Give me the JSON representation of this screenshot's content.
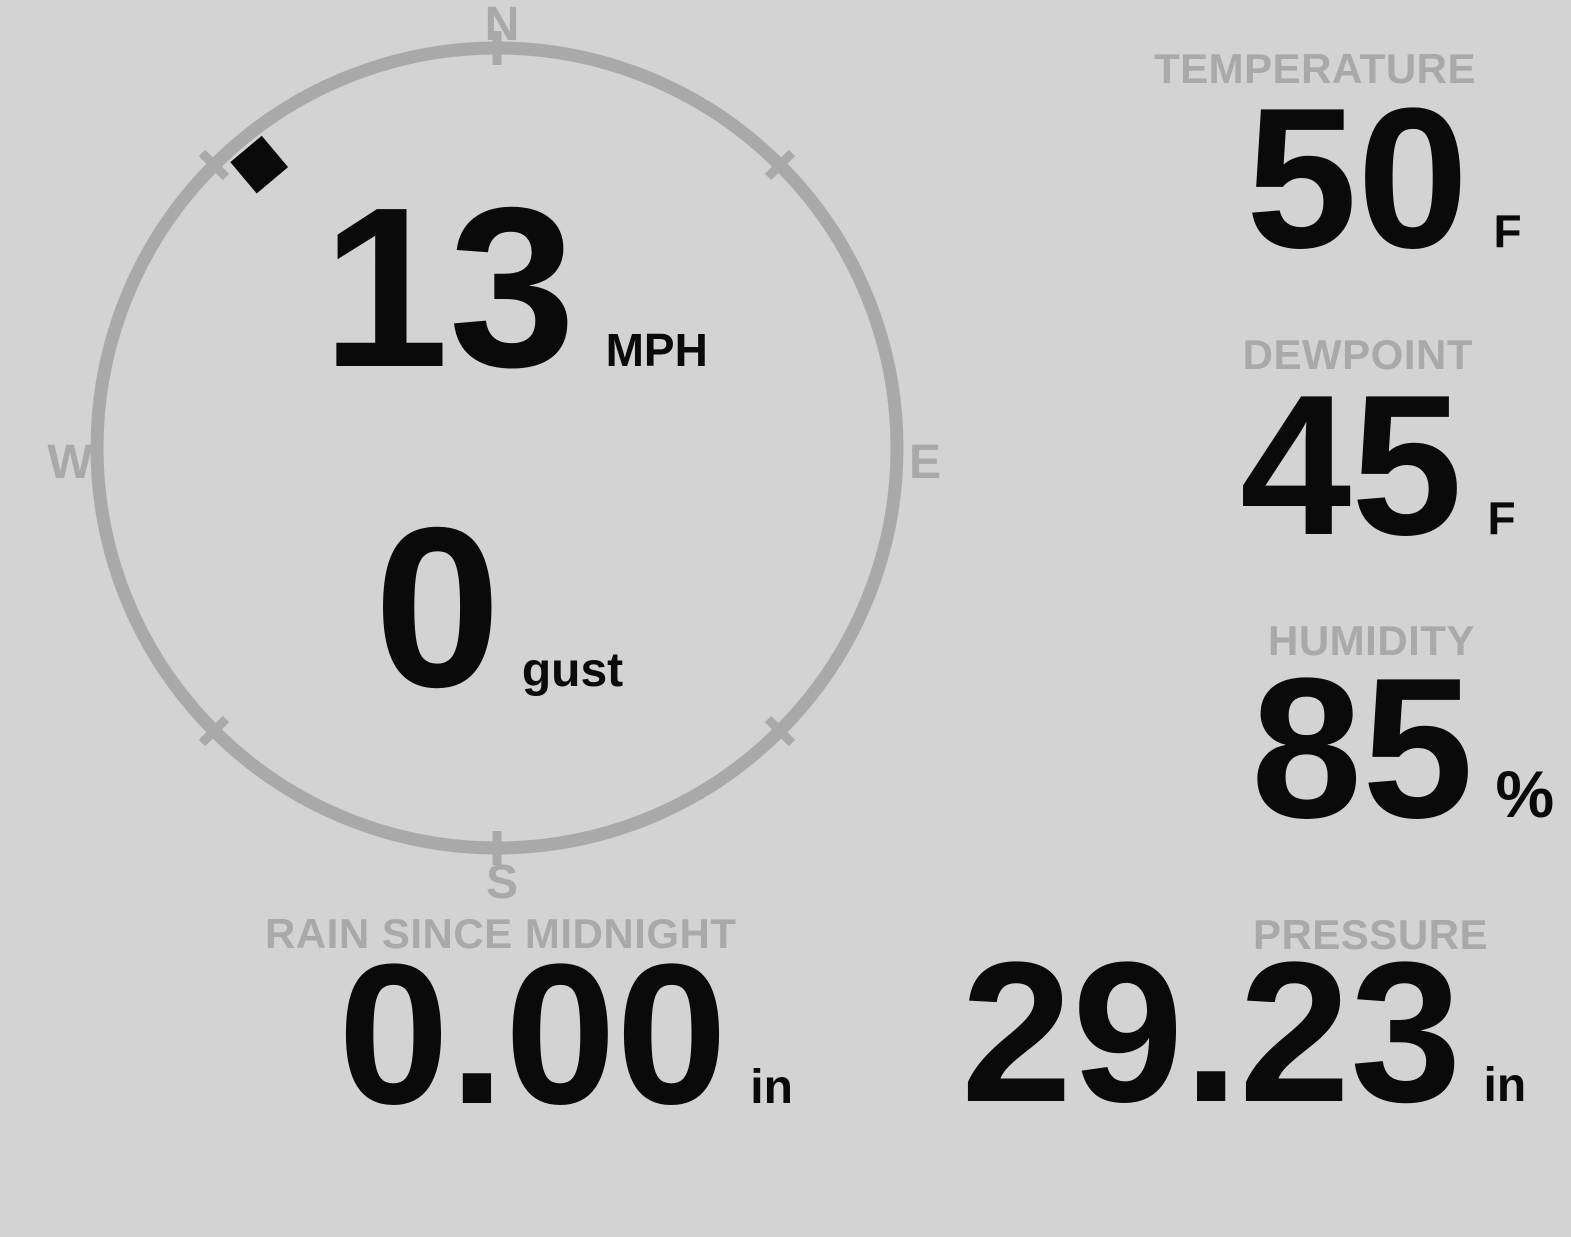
{
  "colors": {
    "background": "#d3d3d3",
    "muted_gray": "#a9a9a9",
    "ink_black": "#0a0a0a"
  },
  "compass": {
    "cardinals": {
      "north": "N",
      "east": "E",
      "south": "S",
      "west": "W"
    },
    "direction_degrees": 320,
    "wind_speed": {
      "value": "13",
      "unit": "MPH"
    },
    "wind_gust": {
      "value": "0",
      "unit": "gust"
    }
  },
  "metrics": {
    "temperature": {
      "label": "TEMPERATURE",
      "value": "50",
      "unit": "F"
    },
    "dewpoint": {
      "label": "DEWPOINT",
      "value": "45",
      "unit": "F"
    },
    "humidity": {
      "label": "HUMIDITY",
      "value": "85",
      "unit": "%"
    },
    "rain": {
      "label": "RAIN SINCE MIDNIGHT",
      "value": "0.00",
      "unit": "in"
    },
    "pressure": {
      "label": "PRESSURE",
      "value": "29.23",
      "unit": "in"
    }
  }
}
